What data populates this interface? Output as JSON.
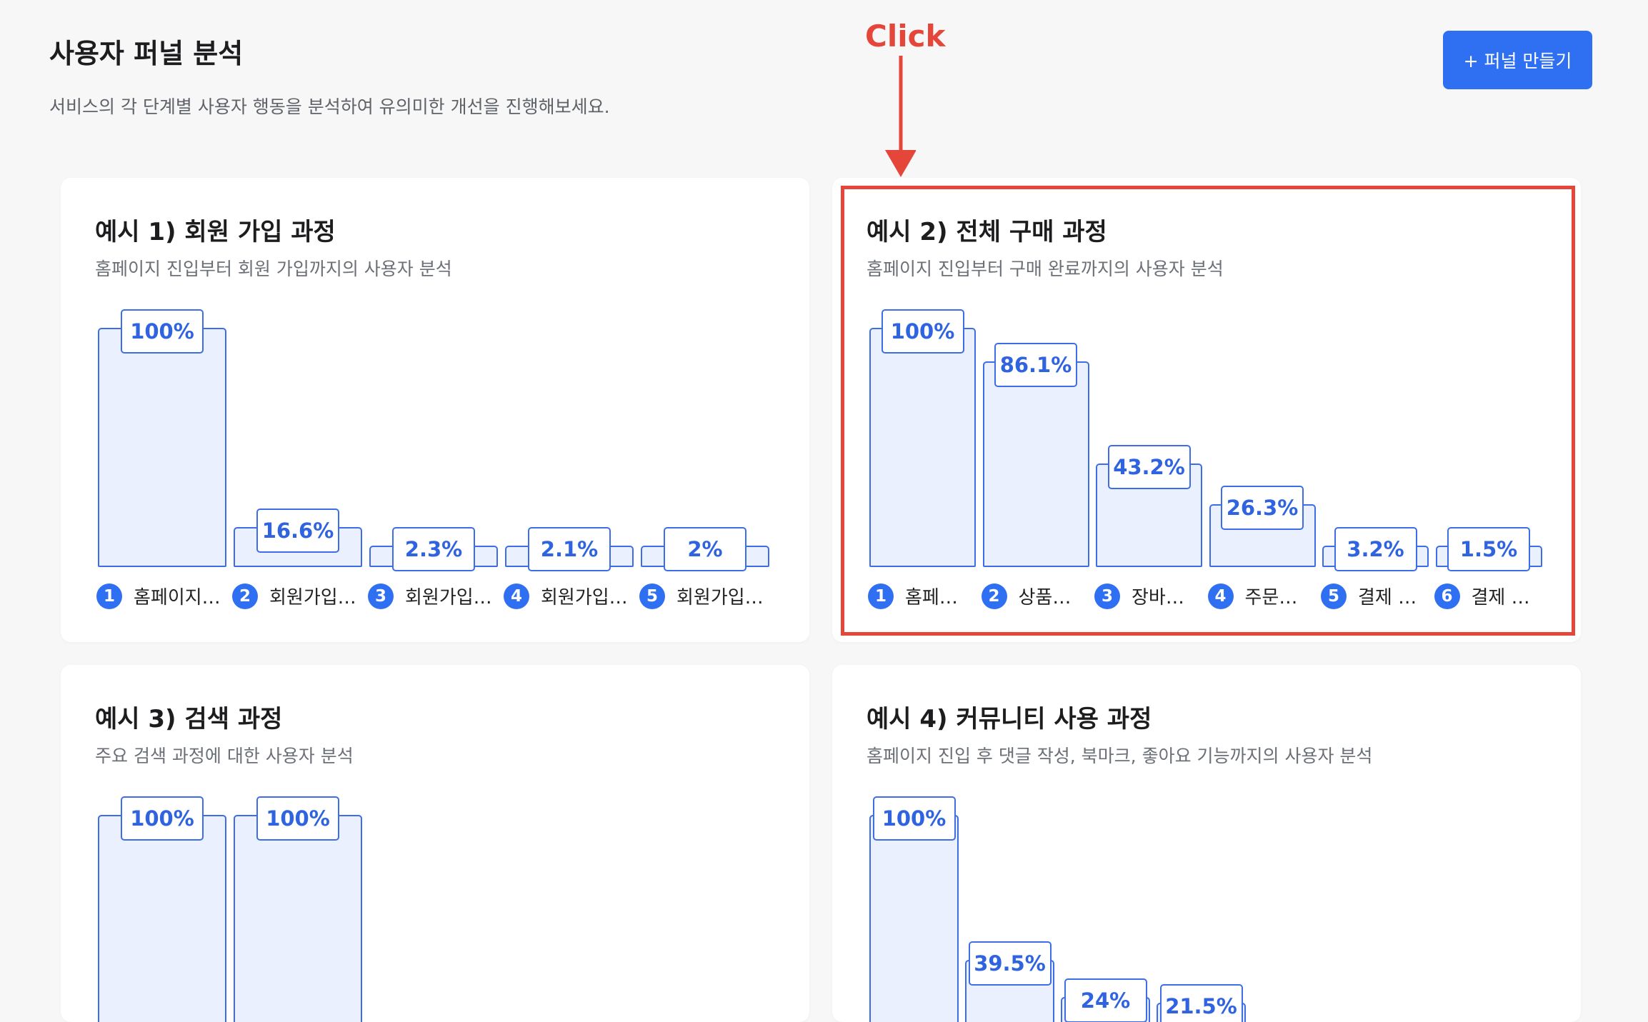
{
  "header": {
    "title": "사용자 퍼널 분석",
    "subtitle": "서비스의 각 단계별 사용자 행동을 분석하여 유의미한 개선을 진행해보세요.",
    "create_button": "+ 퍼널 만들기"
  },
  "annotation": {
    "click_label": "Click",
    "color": "#e5463a"
  },
  "colors": {
    "accent": "#2f6ff2",
    "bar_fill": "#eaf0fd",
    "bar_border": "#3d6ee8"
  },
  "cards": [
    {
      "title": "예시 1) 회원 가입 과정",
      "description": "홈페이지 진입부터 회원 가입까지의 사용자 분석",
      "steps": [
        {
          "num": "1",
          "label": "홈페이지…",
          "pct": "100%",
          "value": 100
        },
        {
          "num": "2",
          "label": "회원가입…",
          "pct": "16.6%",
          "value": 16.6
        },
        {
          "num": "3",
          "label": "회원가입…",
          "pct": "2.3%",
          "value": 2.3
        },
        {
          "num": "4",
          "label": "회원가입…",
          "pct": "2.1%",
          "value": 2.1
        },
        {
          "num": "5",
          "label": "회원가입…",
          "pct": "2%",
          "value": 2
        }
      ]
    },
    {
      "title": "예시 2) 전체 구매 과정",
      "description": "홈페이지 진입부터 구매 완료까지의 사용자 분석",
      "steps": [
        {
          "num": "1",
          "label": "홈페…",
          "pct": "100%",
          "value": 100
        },
        {
          "num": "2",
          "label": "상품…",
          "pct": "86.1%",
          "value": 86.1
        },
        {
          "num": "3",
          "label": "장바…",
          "pct": "43.2%",
          "value": 43.2
        },
        {
          "num": "4",
          "label": "주문…",
          "pct": "26.3%",
          "value": 26.3
        },
        {
          "num": "5",
          "label": "결제 …",
          "pct": "3.2%",
          "value": 3.2
        },
        {
          "num": "6",
          "label": "결제 …",
          "pct": "1.5%",
          "value": 1.5
        }
      ]
    },
    {
      "title": "예시 3) 검색 과정",
      "description": "주요 검색 과정에 대한 사용자 분석",
      "steps": [
        {
          "pct": "100%",
          "value": 100
        },
        {
          "pct": "100%",
          "value": 100
        }
      ]
    },
    {
      "title": "예시 4) 커뮤니티 사용 과정",
      "description": "홈페이지 진입 후 댓글 작성, 북마크, 좋아요 기능까지의 사용자 분석",
      "steps": [
        {
          "pct": "100%",
          "value": 100
        },
        {
          "pct": "39.5%",
          "value": 39.5
        },
        {
          "pct": "24%",
          "value": 24
        },
        {
          "pct": "21.5%",
          "value": 21.5
        }
      ]
    }
  ]
}
